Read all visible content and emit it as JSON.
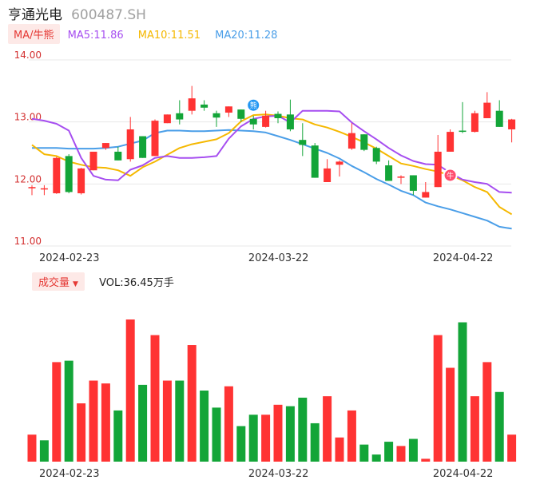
{
  "header": {
    "name": "亨通光电",
    "code": "600487.SH"
  },
  "ma_bar": {
    "mode_label": "MA/牛熊",
    "ma5": "MA5:11.86",
    "ma10": "MA10:11.51",
    "ma20": "MA20:11.28"
  },
  "volume_bar": {
    "mode_label": "成交量",
    "vol_text": "VOL:36.45万手"
  },
  "colors": {
    "up": "#ff3333",
    "down": "#13a538",
    "ma5": "#a64ef0",
    "ma10": "#f5b800",
    "ma20": "#4a9ee8",
    "grid": "#e8e8e8",
    "axis_text": "#d32f2f"
  },
  "icons": {
    "bear_marker": "bear-icon",
    "bull_marker": "bull-icon",
    "bear_text": "熊",
    "bull_text": "牛"
  },
  "chart_data": [
    {
      "type": "candlestick",
      "ylim": [
        11.0,
        14.0
      ],
      "yticks": [
        "14.00",
        "13.00",
        "12.00",
        "11.00"
      ],
      "xtick_labels": [
        {
          "index": 2,
          "label": "2024-02-23"
        },
        {
          "index": 19,
          "label": "2024-03-22"
        },
        {
          "index": 34,
          "label": "2024-04-22"
        }
      ],
      "ohlc": [
        [
          11.93,
          11.98,
          11.82,
          11.95
        ],
        [
          11.93,
          11.98,
          11.82,
          11.93
        ],
        [
          11.85,
          12.44,
          11.84,
          12.42
        ],
        [
          12.45,
          12.48,
          11.85,
          11.87
        ],
        [
          11.85,
          12.26,
          11.83,
          12.25
        ],
        [
          12.22,
          12.52,
          12.22,
          12.52
        ],
        [
          12.58,
          12.66,
          12.55,
          12.66
        ],
        [
          12.52,
          12.6,
          12.38,
          12.38
        ],
        [
          12.4,
          13.08,
          12.36,
          12.88
        ],
        [
          12.77,
          12.77,
          12.42,
          12.42
        ],
        [
          12.45,
          13.04,
          12.45,
          13.02
        ],
        [
          12.98,
          13.12,
          12.98,
          13.12
        ],
        [
          13.14,
          13.35,
          12.96,
          13.04
        ],
        [
          13.18,
          13.58,
          13.12,
          13.38
        ],
        [
          13.28,
          13.35,
          13.18,
          13.23
        ],
        [
          13.14,
          13.18,
          12.92,
          13.07
        ],
        [
          13.15,
          13.25,
          13.08,
          13.25
        ],
        [
          13.2,
          13.2,
          13.0,
          13.05
        ],
        [
          13.05,
          13.1,
          12.88,
          12.96
        ],
        [
          12.92,
          13.18,
          12.91,
          13.1
        ],
        [
          13.13,
          13.17,
          12.98,
          13.06
        ],
        [
          13.12,
          13.36,
          12.85,
          12.88
        ],
        [
          12.71,
          12.98,
          12.45,
          12.63
        ],
        [
          12.62,
          12.66,
          12.1,
          12.1
        ],
        [
          12.03,
          12.4,
          12.03,
          12.25
        ],
        [
          12.31,
          12.38,
          12.12,
          12.36
        ],
        [
          12.57,
          12.98,
          12.55,
          12.82
        ],
        [
          12.8,
          12.8,
          12.53,
          12.55
        ],
        [
          12.58,
          12.6,
          12.32,
          12.36
        ],
        [
          12.3,
          12.38,
          12.05,
          12.05
        ],
        [
          12.1,
          12.14,
          12.0,
          12.12
        ],
        [
          12.14,
          12.14,
          11.82,
          11.89
        ],
        [
          11.78,
          12.03,
          11.78,
          11.87
        ],
        [
          11.95,
          12.79,
          11.95,
          12.52
        ],
        [
          12.52,
          12.88,
          12.52,
          12.84
        ],
        [
          12.86,
          13.32,
          12.82,
          12.84
        ],
        [
          12.84,
          13.18,
          12.83,
          13.14
        ],
        [
          13.06,
          13.48,
          13.06,
          13.31
        ],
        [
          13.18,
          13.35,
          12.92,
          12.92
        ],
        [
          12.88,
          13.05,
          12.67,
          13.04
        ]
      ],
      "ma5": [
        13.05,
        13.02,
        12.97,
        12.86,
        12.42,
        12.13,
        12.07,
        12.06,
        12.23,
        12.3,
        12.42,
        12.45,
        12.42,
        12.42,
        12.43,
        12.45,
        12.73,
        12.93,
        13.05,
        13.09,
        13.1,
        12.99,
        13.18,
        13.18,
        13.18,
        13.17,
        12.99,
        12.85,
        12.72,
        12.58,
        12.46,
        12.37,
        12.32,
        12.31,
        12.18,
        12.07,
        12.03,
        12.0,
        11.87,
        11.86
      ],
      "ma10": [
        12.63,
        12.48,
        12.45,
        12.36,
        12.31,
        12.27,
        12.26,
        12.22,
        12.13,
        12.27,
        12.36,
        12.47,
        12.58,
        12.64,
        12.68,
        12.72,
        12.82,
        13.01,
        13.11,
        13.12,
        13.1,
        13.06,
        13.04,
        12.96,
        12.91,
        12.84,
        12.76,
        12.67,
        12.57,
        12.45,
        12.33,
        12.29,
        12.24,
        12.2,
        12.14,
        12.06,
        11.95,
        11.87,
        11.63,
        11.51
      ],
      "ma20": [
        12.58,
        12.58,
        12.58,
        12.57,
        12.57,
        12.57,
        12.58,
        12.6,
        12.65,
        12.7,
        12.82,
        12.86,
        12.86,
        12.85,
        12.85,
        12.86,
        12.87,
        12.86,
        12.85,
        12.83,
        12.77,
        12.71,
        12.64,
        12.57,
        12.5,
        12.41,
        12.29,
        12.19,
        12.08,
        11.99,
        11.89,
        11.82,
        11.7,
        11.64,
        11.59,
        11.53,
        11.47,
        11.41,
        11.31,
        11.28
      ]
    },
    {
      "type": "bar",
      "series_name": "VOL",
      "ylim": [
        0,
        100
      ],
      "values": [
        19,
        15,
        70,
        71,
        41,
        57,
        55,
        36,
        100,
        54,
        89,
        57,
        57,
        82,
        50,
        38,
        53,
        25,
        33,
        33,
        40,
        39,
        45,
        27,
        46,
        17,
        36,
        12,
        5,
        14,
        11,
        16,
        2,
        89,
        66,
        98,
        46,
        70,
        49,
        19
      ],
      "colors": [
        "up",
        "down",
        "up",
        "down",
        "up",
        "up",
        "up",
        "down",
        "up",
        "down",
        "up",
        "up",
        "down",
        "up",
        "down",
        "down",
        "up",
        "down",
        "down",
        "up",
        "up",
        "down",
        "down",
        "down",
        "up",
        "up",
        "up",
        "down",
        "down",
        "down",
        "up",
        "down",
        "up",
        "up",
        "up",
        "down",
        "up",
        "up",
        "down",
        "up"
      ],
      "xtick_labels": [
        {
          "index": 2,
          "label": "2024-02-23"
        },
        {
          "index": 19,
          "label": "2024-03-22"
        },
        {
          "index": 34,
          "label": "2024-04-22"
        }
      ]
    }
  ]
}
